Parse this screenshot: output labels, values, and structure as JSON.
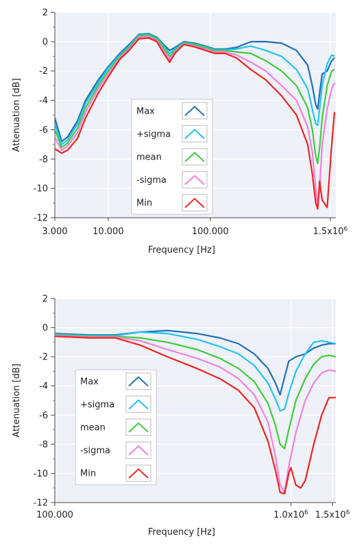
{
  "chart_data": [
    {
      "type": "line",
      "xlabel": "Frequency [Hz]",
      "ylabel": "Attenuation [dB]",
      "xscale": "log",
      "xlim": [
        3000,
        1700000
      ],
      "ylim": [
        -12,
        2
      ],
      "xticks": [
        3000,
        10000,
        100000,
        1500000
      ],
      "xtick_labels": [
        "3.000",
        "10.000",
        "100.000",
        "1.5x10⁶"
      ],
      "yticks": [
        2,
        0,
        -2,
        -4,
        -6,
        -8,
        -10,
        -12
      ],
      "ytick_labels": [
        "2",
        "0",
        "-2",
        "-4",
        "-6",
        "-8",
        "-10",
        "-12"
      ],
      "grid": true,
      "legend_placement": "lower-center",
      "series": [
        {
          "name": "Max",
          "color": "#1f6fb4",
          "x": [
            3000,
            3500,
            4000,
            5000,
            6000,
            8000,
            10000,
            13000,
            16000,
            20000,
            25000,
            30000,
            35000,
            40000,
            45000,
            55000,
            70000,
            90000,
            110000,
            140000,
            180000,
            250000,
            350000,
            500000,
            700000,
            900000,
            1000000,
            1080000,
            1130000,
            1180000,
            1250000,
            1400000,
            1550000,
            1650000
          ],
          "y": [
            -5.2,
            -6.8,
            -6.5,
            -5.4,
            -4.0,
            -2.6,
            -1.7,
            -0.8,
            -0.2,
            0.5,
            0.55,
            0.3,
            -0.2,
            -0.6,
            -0.4,
            0.0,
            -0.1,
            -0.3,
            -0.5,
            -0.5,
            -0.4,
            0.0,
            0.0,
            -0.1,
            -0.6,
            -1.6,
            -3.0,
            -4.3,
            -4.6,
            -3.5,
            -2.2,
            -2.0,
            -1.3,
            -1.1
          ]
        },
        {
          "name": "+sigma",
          "color": "#22c4ee",
          "x": [
            3000,
            3500,
            4000,
            5000,
            6000,
            8000,
            10000,
            13000,
            16000,
            20000,
            25000,
            30000,
            35000,
            40000,
            45000,
            55000,
            70000,
            90000,
            110000,
            140000,
            180000,
            250000,
            350000,
            500000,
            700000,
            900000,
            1000000,
            1080000,
            1130000,
            1180000,
            1250000,
            1400000,
            1550000,
            1650000
          ],
          "y": [
            -5.6,
            -7.0,
            -6.7,
            -5.6,
            -4.2,
            -2.8,
            -1.8,
            -0.9,
            -0.3,
            0.45,
            0.5,
            0.25,
            -0.3,
            -0.8,
            -0.5,
            -0.05,
            -0.15,
            -0.35,
            -0.55,
            -0.55,
            -0.5,
            -0.3,
            -0.6,
            -1.0,
            -1.9,
            -3.2,
            -4.6,
            -5.6,
            -5.7,
            -4.6,
            -3.0,
            -1.5,
            -0.9,
            -1.0
          ]
        },
        {
          "name": "mean",
          "color": "#3fcb3a",
          "x": [
            3000,
            3500,
            4000,
            5000,
            6000,
            8000,
            10000,
            13000,
            16000,
            20000,
            25000,
            30000,
            35000,
            40000,
            45000,
            55000,
            70000,
            90000,
            110000,
            140000,
            180000,
            250000,
            350000,
            500000,
            700000,
            900000,
            1000000,
            1080000,
            1130000,
            1180000,
            1250000,
            1400000,
            1550000,
            1650000
          ],
          "y": [
            -6.0,
            -7.2,
            -6.9,
            -5.9,
            -4.5,
            -3.0,
            -2.0,
            -1.0,
            -0.4,
            0.4,
            0.45,
            0.2,
            -0.4,
            -1.0,
            -0.6,
            -0.1,
            -0.2,
            -0.4,
            -0.6,
            -0.6,
            -0.7,
            -0.8,
            -1.3,
            -2.0,
            -3.0,
            -4.5,
            -6.0,
            -7.8,
            -8.3,
            -7.2,
            -5.2,
            -3.0,
            -2.0,
            -1.9
          ]
        },
        {
          "name": "-sigma",
          "color": "#f27fe0",
          "x": [
            3000,
            3500,
            4000,
            5000,
            6000,
            8000,
            10000,
            13000,
            16000,
            20000,
            25000,
            30000,
            35000,
            40000,
            45000,
            55000,
            70000,
            90000,
            110000,
            140000,
            180000,
            250000,
            350000,
            500000,
            700000,
            900000,
            1000000,
            1080000,
            1130000,
            1180000,
            1250000,
            1400000,
            1550000,
            1650000
          ],
          "y": [
            -6.5,
            -7.4,
            -7.1,
            -6.2,
            -4.8,
            -3.2,
            -2.2,
            -1.1,
            -0.5,
            0.3,
            0.35,
            0.1,
            -0.6,
            -1.2,
            -0.7,
            -0.15,
            -0.3,
            -0.5,
            -0.7,
            -0.7,
            -0.9,
            -1.4,
            -2.0,
            -3.0,
            -4.0,
            -5.8,
            -7.5,
            -10.0,
            -11.2,
            -10.0,
            -7.0,
            -4.6,
            -3.2,
            -2.8
          ]
        },
        {
          "name": "Min",
          "color": "#f0231e",
          "x": [
            3000,
            3500,
            4000,
            5000,
            6000,
            8000,
            10000,
            13000,
            16000,
            20000,
            25000,
            30000,
            35000,
            40000,
            45000,
            55000,
            70000,
            90000,
            110000,
            140000,
            180000,
            250000,
            350000,
            500000,
            700000,
            900000,
            1000000,
            1080000,
            1130000,
            1180000,
            1250000,
            1400000,
            1550000,
            1650000
          ],
          "y": [
            -7.3,
            -7.6,
            -7.4,
            -6.6,
            -5.2,
            -3.5,
            -2.4,
            -1.2,
            -0.6,
            0.2,
            0.25,
            0.0,
            -0.8,
            -1.4,
            -0.8,
            -0.2,
            -0.35,
            -0.6,
            -0.8,
            -0.8,
            -1.1,
            -1.9,
            -2.6,
            -3.7,
            -5.0,
            -7.0,
            -9.0,
            -11.0,
            -11.4,
            -9.5,
            -10.8,
            -11.3,
            -7.0,
            -4.8
          ]
        }
      ]
    },
    {
      "type": "line",
      "xlabel": "Frequency [Hz]",
      "ylabel": "Attenuation [dB]",
      "xscale": "log",
      "xlim": [
        100000,
        1550000
      ],
      "ylim": [
        -12,
        2
      ],
      "xticks": [
        100000,
        1000000,
        1500000
      ],
      "xtick_labels": [
        "100.000",
        "1.0x10⁶",
        "1.5x10⁶"
      ],
      "yticks": [
        2,
        0,
        -2,
        -4,
        -6,
        -8,
        -10,
        -12
      ],
      "ytick_labels": [
        "2",
        "0",
        "-2",
        "-4",
        "-6",
        "-8",
        "-10",
        "-12"
      ],
      "grid": true,
      "legend_placement": "lower-left",
      "series": [
        {
          "name": "Max",
          "color": "#1f6fb4",
          "x": [
            100000,
            140000,
            180000,
            230000,
            300000,
            400000,
            500000,
            600000,
            700000,
            800000,
            860000,
            900000,
            940000,
            980000,
            1050000,
            1150000,
            1250000,
            1350000,
            1450000,
            1550000
          ],
          "y": [
            -0.4,
            -0.5,
            -0.5,
            -0.3,
            -0.2,
            -0.4,
            -0.7,
            -1.1,
            -1.8,
            -2.8,
            -3.8,
            -4.6,
            -3.4,
            -2.3,
            -2.0,
            -1.8,
            -1.4,
            -1.2,
            -1.1,
            -1.1
          ]
        },
        {
          "name": "+sigma",
          "color": "#22c4ee",
          "x": [
            100000,
            140000,
            180000,
            230000,
            300000,
            400000,
            500000,
            600000,
            700000,
            800000,
            860000,
            900000,
            940000,
            980000,
            1050000,
            1150000,
            1250000,
            1350000,
            1450000,
            1550000
          ],
          "y": [
            -0.45,
            -0.55,
            -0.55,
            -0.3,
            -0.4,
            -0.8,
            -1.3,
            -1.8,
            -2.6,
            -3.8,
            -4.9,
            -5.7,
            -5.6,
            -4.5,
            -3.0,
            -1.8,
            -1.0,
            -0.9,
            -1.0,
            -1.1
          ]
        },
        {
          "name": "mean",
          "color": "#3fcb3a",
          "x": [
            100000,
            140000,
            180000,
            230000,
            300000,
            400000,
            500000,
            600000,
            700000,
            800000,
            860000,
            900000,
            940000,
            980000,
            1050000,
            1150000,
            1250000,
            1350000,
            1450000,
            1550000
          ],
          "y": [
            -0.5,
            -0.6,
            -0.6,
            -0.7,
            -1.0,
            -1.5,
            -2.1,
            -2.8,
            -3.7,
            -5.2,
            -6.7,
            -8.0,
            -8.3,
            -7.0,
            -5.0,
            -3.5,
            -2.5,
            -2.0,
            -1.9,
            -2.0
          ]
        },
        {
          "name": "-sigma",
          "color": "#f27fe0",
          "x": [
            100000,
            140000,
            180000,
            230000,
            300000,
            400000,
            500000,
            600000,
            700000,
            800000,
            860000,
            900000,
            940000,
            980000,
            1050000,
            1150000,
            1250000,
            1350000,
            1450000,
            1550000
          ],
          "y": [
            -0.55,
            -0.65,
            -0.65,
            -0.9,
            -1.5,
            -2.1,
            -2.7,
            -3.5,
            -4.6,
            -6.5,
            -8.8,
            -10.8,
            -11.3,
            -9.5,
            -7.2,
            -5.0,
            -3.8,
            -3.1,
            -2.9,
            -3.0
          ]
        },
        {
          "name": "Min",
          "color": "#f0231e",
          "x": [
            100000,
            140000,
            180000,
            230000,
            300000,
            400000,
            500000,
            600000,
            700000,
            800000,
            860000,
            900000,
            940000,
            980000,
            1000000,
            1050000,
            1100000,
            1150000,
            1250000,
            1350000,
            1450000,
            1550000
          ],
          "y": [
            -0.6,
            -0.7,
            -0.7,
            -1.2,
            -2.0,
            -2.8,
            -3.5,
            -4.3,
            -5.5,
            -7.8,
            -9.8,
            -11.3,
            -11.4,
            -10.0,
            -9.6,
            -10.8,
            -11.0,
            -10.5,
            -8.0,
            -6.0,
            -4.8,
            -4.8
          ]
        }
      ]
    }
  ]
}
